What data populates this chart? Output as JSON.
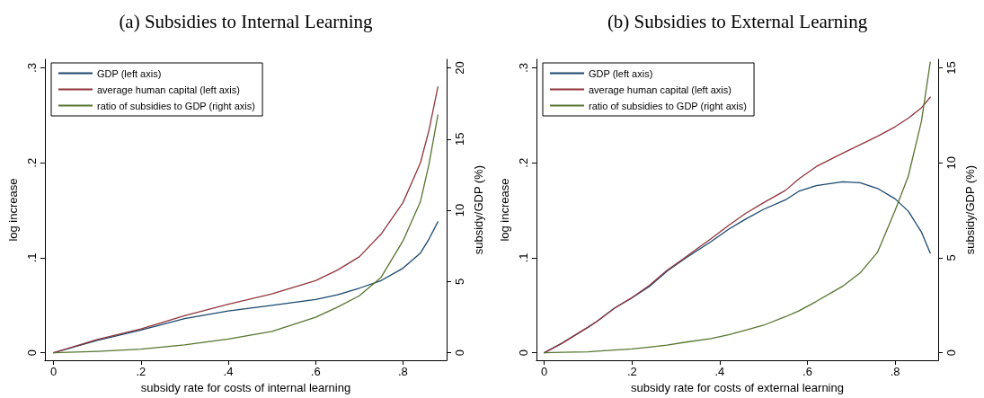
{
  "chart_data": [
    {
      "type": "line",
      "title": "(a) Subsidies to Internal Learning",
      "xlabel": "subsidy rate for costs of internal learning",
      "ylabel": "log increase",
      "y2label": "subsidy/GDP (%)",
      "x": [
        0,
        0.1,
        0.2,
        0.3,
        0.4,
        0.5,
        0.6,
        0.65,
        0.7,
        0.75,
        0.8,
        0.84,
        0.86,
        0.88
      ],
      "series": [
        {
          "name": "GDP (left axis)",
          "color": "#1a476f",
          "values": [
            0,
            0.013,
            0.024,
            0.036,
            0.044,
            0.05,
            0.056,
            0.061,
            0.068,
            0.076,
            0.089,
            0.105,
            0.12,
            0.138
          ]
        },
        {
          "name": "average human capital (left axis)",
          "color": "#90353b",
          "values": [
            0,
            0.014,
            0.025,
            0.039,
            0.051,
            0.062,
            0.076,
            0.087,
            0.101,
            0.125,
            0.158,
            0.2,
            0.235,
            0.28
          ]
        },
        {
          "name": "ratio of subsidies to GDP (right axis)",
          "color": "#55752f",
          "axis": "y2",
          "values": [
            0,
            0.1,
            0.26,
            0.55,
            0.97,
            1.5,
            2.5,
            3.2,
            4.0,
            5.3,
            7.85,
            10.6,
            13.3,
            16.7
          ]
        }
      ],
      "xlim": [
        -0.02,
        0.9
      ],
      "xticks": [
        0,
        {
          "value": 0.2,
          "label": ".2"
        },
        {
          "value": 0.4,
          "label": ".4"
        },
        {
          "value": 0.6,
          "label": ".6"
        },
        {
          "value": 0.8,
          "label": ".8"
        }
      ],
      "ylim": [
        -0.008,
        0.309
      ],
      "yticks": [
        0,
        {
          "value": 0.1,
          "label": ".1"
        },
        {
          "value": 0.2,
          "label": ".2"
        },
        {
          "value": 0.3,
          "label": ".3"
        }
      ],
      "y2lim": [
        -0.53,
        20.6
      ],
      "y2ticks": [
        0,
        5,
        10,
        15,
        20
      ],
      "grid": false,
      "legend": "top left",
      "marker": "none",
      "line_style": "solid"
    },
    {
      "type": "line",
      "title": "(b) Subsidies to External Learning",
      "xlabel": "subsidy rate for costs of external learning",
      "ylabel": "log increase",
      "y2label": "subsidy/GDP (%)",
      "x": [
        0,
        0.04,
        0.1,
        0.12,
        0.16,
        0.2,
        0.24,
        0.28,
        0.32,
        0.38,
        0.42,
        0.46,
        0.5,
        0.55,
        0.58,
        0.62,
        0.68,
        0.72,
        0.76,
        0.8,
        0.83,
        0.86,
        0.88
      ],
      "series": [
        {
          "name": "GDP (left axis)",
          "color": "#1a476f",
          "values": [
            0,
            0.01,
            0.027,
            0.033,
            0.047,
            0.058,
            0.07,
            0.086,
            0.099,
            0.117,
            0.13,
            0.141,
            0.151,
            0.161,
            0.17,
            0.176,
            0.18,
            0.179,
            0.173,
            0.162,
            0.149,
            0.127,
            0.105
          ]
        },
        {
          "name": "average human capital (left axis)",
          "color": "#90353b",
          "values": [
            0,
            0.01,
            0.027,
            0.033,
            0.047,
            0.058,
            0.071,
            0.087,
            0.1,
            0.12,
            0.134,
            0.147,
            0.158,
            0.171,
            0.183,
            0.196,
            0.21,
            0.219,
            0.228,
            0.238,
            0.247,
            0.258,
            0.269
          ]
        },
        {
          "name": "ratio of subsidies to GDP (right axis)",
          "color": "#55752f",
          "axis": "y2",
          "values": [
            0,
            0.02,
            0.05,
            0.08,
            0.14,
            0.2,
            0.3,
            0.4,
            0.55,
            0.75,
            0.95,
            1.2,
            1.45,
            1.9,
            2.2,
            2.7,
            3.5,
            4.2,
            5.3,
            7.5,
            9.3,
            12.2,
            15.3
          ]
        }
      ],
      "xlim": [
        -0.018,
        0.898
      ],
      "xticks": [
        0,
        {
          "value": 0.2,
          "label": ".2"
        },
        {
          "value": 0.4,
          "label": ".4"
        },
        {
          "value": 0.6,
          "label": ".6"
        },
        {
          "value": 0.8,
          "label": ".8"
        }
      ],
      "ylim": [
        -0.008,
        0.309
      ],
      "yticks": [
        0,
        {
          "value": 0.1,
          "label": ".1"
        },
        {
          "value": 0.2,
          "label": ".2"
        },
        {
          "value": 0.3,
          "label": ".3"
        }
      ],
      "y2lim": [
        -0.4,
        15.45
      ],
      "y2ticks": [
        0,
        5,
        10,
        15
      ],
      "grid": false,
      "legend": "top left",
      "marker": "none",
      "line_style": "solid"
    }
  ]
}
